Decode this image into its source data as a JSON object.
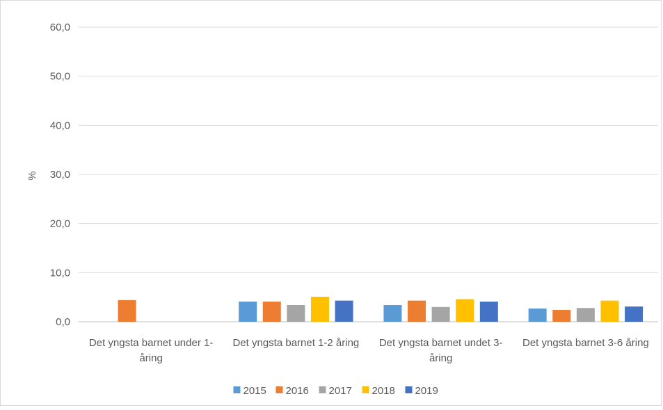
{
  "chart_data": {
    "type": "bar",
    "title": "",
    "ylabel": "%",
    "xlabel": "",
    "ylim": [
      0,
      60
    ],
    "yticks": [
      "0,0",
      "10,0",
      "20,0",
      "30,0",
      "40,0",
      "50,0",
      "60,0"
    ],
    "grid": true,
    "legend_position": "bottom",
    "categories": [
      [
        "Det yngsta barnet under 1-",
        "åring"
      ],
      [
        "Det yngsta barnet 1-2 åring"
      ],
      [
        "Det yngsta barnet undet 3-",
        "åring"
      ],
      [
        "Det yngsta barnet 3-6 åring"
      ]
    ],
    "series": [
      {
        "name": "2015",
        "color": "#5b9bd5",
        "values": [
          0,
          4.1,
          3.4,
          2.7
        ]
      },
      {
        "name": "2016",
        "color": "#ed7d31",
        "values": [
          4.4,
          4.1,
          4.3,
          2.4
        ]
      },
      {
        "name": "2017",
        "color": "#a5a5a5",
        "values": [
          0,
          3.4,
          3.0,
          2.8
        ]
      },
      {
        "name": "2018",
        "color": "#ffc000",
        "values": [
          0,
          5.1,
          4.6,
          4.3
        ]
      },
      {
        "name": "2019",
        "color": "#4472c4",
        "values": [
          0,
          4.3,
          4.1,
          3.1
        ]
      }
    ]
  }
}
